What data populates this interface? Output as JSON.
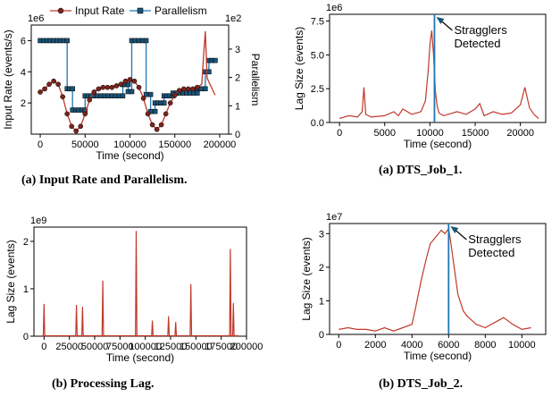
{
  "colors": {
    "red": "#c0392b",
    "blue": "#1f77b4",
    "dark_blue": "#1a5276",
    "axis": "#000000"
  },
  "chart_data": [
    {
      "id": "input_parallelism",
      "type": "line",
      "caption": "(a) Input Rate and Parallelism.",
      "xlabel": "Time (second)",
      "ylabel": "Input Rate (events/s)",
      "ylabel_right": "Parallelism",
      "y_exponent": "1e6",
      "y2_exponent": "1e2",
      "xlim": [
        -10000,
        210000
      ],
      "ylim": [
        0,
        7.0
      ],
      "y2lim": [
        0,
        3.85
      ],
      "xticks": [
        0,
        50000,
        100000,
        150000,
        200000
      ],
      "xtick_labels": [
        "0",
        "50000",
        "100000",
        "150000",
        "200000"
      ],
      "yticks": [
        2,
        4,
        6
      ],
      "ytick_labels": [
        "2",
        "4",
        "6"
      ],
      "y2ticks": [
        0,
        1,
        2,
        3
      ],
      "y2tick_labels": [
        "0",
        "1",
        "2",
        "3"
      ],
      "legend": [
        "Input Rate",
        "Parallelism"
      ],
      "legend_position": "top",
      "series": [
        {
          "name": "Input Rate",
          "axis": "left",
          "color": "#c0392b",
          "x": [
            0,
            5000,
            10000,
            15000,
            20000,
            25000,
            30000,
            35000,
            40000,
            45000,
            50000,
            55000,
            60000,
            65000,
            70000,
            75000,
            80000,
            85000,
            90000,
            95000,
            100000,
            105000,
            110000,
            115000,
            120000,
            125000,
            130000,
            135000,
            140000,
            145000,
            150000,
            155000,
            160000,
            165000,
            170000,
            175000,
            180000,
            182000,
            184000,
            186000,
            190000,
            195000
          ],
          "y": [
            2.7,
            2.9,
            3.2,
            3.4,
            3.2,
            2.4,
            1.3,
            0.5,
            0.2,
            0.5,
            1.3,
            2.2,
            2.7,
            2.9,
            3.0,
            3.0,
            3.0,
            3.1,
            3.2,
            3.4,
            3.5,
            3.4,
            3.0,
            2.3,
            1.3,
            0.6,
            0.3,
            0.6,
            1.3,
            2.0,
            2.5,
            2.8,
            2.9,
            2.9,
            2.9,
            3.0,
            3.2,
            5.0,
            6.6,
            3.6,
            3.1,
            2.5
          ]
        },
        {
          "name": "Parallelism",
          "axis": "right",
          "color": "#1f77b4",
          "x": [
            0,
            30000,
            30000,
            36000,
            36000,
            50000,
            50000,
            60000,
            60000,
            92000,
            92000,
            98000,
            98000,
            102000,
            102000,
            118000,
            118000,
            123000,
            123000,
            128000,
            128000,
            138000,
            138000,
            148000,
            148000,
            175000,
            175000,
            184000,
            184000,
            188000,
            188000,
            195000
          ],
          "y": [
            3.3,
            3.3,
            1.6,
            1.6,
            0.85,
            0.85,
            1.35,
            1.35,
            1.35,
            1.35,
            1.75,
            1.75,
            1.5,
            1.5,
            3.3,
            3.3,
            1.4,
            1.4,
            0.8,
            0.8,
            1.1,
            1.1,
            1.35,
            1.35,
            1.45,
            1.45,
            1.6,
            1.6,
            2.2,
            2.2,
            2.6,
            2.6
          ]
        }
      ]
    },
    {
      "id": "dts_job_1",
      "type": "line",
      "caption": "(a) DTS_Job_1.",
      "xlabel": "Time (second)",
      "ylabel": "Lag Size (events)",
      "y_exponent": "1e6",
      "xlim": [
        -1100,
        22800
      ],
      "ylim": [
        0,
        8.0
      ],
      "xticks": [
        0,
        5000,
        10000,
        15000,
        20000
      ],
      "xtick_labels": [
        "0",
        "5000",
        "10000",
        "15000",
        "20000"
      ],
      "yticks": [
        0,
        2.5,
        5.0,
        7.5
      ],
      "ytick_labels": [
        "0.0",
        "2.5",
        "5.0",
        "7.5"
      ],
      "vline": 10500,
      "annotation": [
        "Stragglers",
        "Detected"
      ],
      "series": [
        {
          "name": "",
          "color": "#c0392b",
          "x": [
            0,
            1000,
            2000,
            2500,
            2700,
            2900,
            3500,
            5000,
            6000,
            6500,
            7000,
            8000,
            9000,
            9500,
            9800,
            10000,
            10200,
            10400,
            10600,
            10800,
            11000,
            11500,
            12000,
            13000,
            14000,
            15000,
            15500,
            16000,
            17000,
            18000,
            19000,
            20000,
            20500,
            21000,
            21500,
            22000
          ],
          "y": [
            0.3,
            0.5,
            0.4,
            0.8,
            2.6,
            0.6,
            0.4,
            0.5,
            0.8,
            0.5,
            1.0,
            0.6,
            0.8,
            1.6,
            3.8,
            5.8,
            6.8,
            5.0,
            2.3,
            1.2,
            0.7,
            0.5,
            0.6,
            0.8,
            0.6,
            1.0,
            1.4,
            0.5,
            0.8,
            0.6,
            0.7,
            1.3,
            2.6,
            1.1,
            0.6,
            0.3
          ]
        }
      ]
    },
    {
      "id": "processing_lag",
      "type": "line",
      "caption": "(b) Processing Lag.",
      "xlabel": "Time (second)",
      "ylabel": "Lag Size (events)",
      "y_exponent": "1e9",
      "xlim": [
        -10000,
        200000
      ],
      "ylim": [
        0,
        2.3
      ],
      "xticks": [
        0,
        25000,
        50000,
        75000,
        100000,
        125000,
        150000,
        175000,
        200000
      ],
      "xtick_labels": [
        "0",
        "25000",
        "50000",
        "75000",
        "100000",
        "125000",
        "150000",
        "175000",
        "200000"
      ],
      "yticks": [
        0,
        1,
        2
      ],
      "ytick_labels": [
        "0",
        "1",
        "2"
      ],
      "spikes": [
        {
          "x": 0,
          "y": 0.68
        },
        {
          "x": 32000,
          "y": 0.66
        },
        {
          "x": 38000,
          "y": 0.62
        },
        {
          "x": 58000,
          "y": 1.17
        },
        {
          "x": 91000,
          "y": 2.22
        },
        {
          "x": 107000,
          "y": 0.33
        },
        {
          "x": 123000,
          "y": 0.42
        },
        {
          "x": 130000,
          "y": 0.3
        },
        {
          "x": 145000,
          "y": 1.1
        },
        {
          "x": 184000,
          "y": 1.84
        },
        {
          "x": 187000,
          "y": 0.7
        }
      ]
    },
    {
      "id": "dts_job_2",
      "type": "line",
      "caption": "(b) DTS_Job_2.",
      "xlabel": "Time (second)",
      "ylabel": "Lag Size (events)",
      "y_exponent": "1e7",
      "xlim": [
        -500,
        11300
      ],
      "ylim": [
        0,
        3.3
      ],
      "xticks": [
        0,
        2000,
        4000,
        6000,
        8000,
        10000
      ],
      "xtick_labels": [
        "0",
        "2000",
        "4000",
        "6000",
        "8000",
        "10000"
      ],
      "yticks": [
        0,
        1,
        2,
        3
      ],
      "ytick_labels": [
        "0",
        "1",
        "2",
        "3"
      ],
      "vline": 6000,
      "annotation": [
        "Stragglers",
        "Detected"
      ],
      "series": [
        {
          "name": "",
          "color": "#c0392b",
          "x": [
            0,
            500,
            1000,
            1500,
            2000,
            2500,
            3000,
            3500,
            4000,
            4200,
            4500,
            4800,
            5000,
            5300,
            5600,
            5800,
            6000,
            6100,
            6300,
            6500,
            6800,
            7000,
            7500,
            8000,
            8500,
            9000,
            9500,
            10000,
            10500
          ],
          "y": [
            0.15,
            0.2,
            0.15,
            0.15,
            0.1,
            0.2,
            0.1,
            0.2,
            0.3,
            0.8,
            1.6,
            2.3,
            2.7,
            2.9,
            3.1,
            3.0,
            3.15,
            2.8,
            2.0,
            1.2,
            0.7,
            0.55,
            0.3,
            0.2,
            0.35,
            0.5,
            0.3,
            0.15,
            0.2
          ]
        }
      ]
    }
  ]
}
